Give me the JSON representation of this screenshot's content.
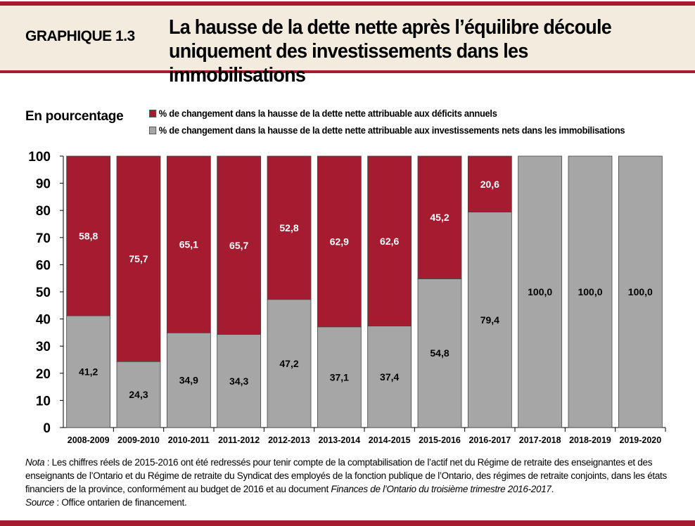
{
  "header": {
    "label": "GRAPHIQUE 1.3",
    "title_line1": "La hausse de la dette nette après l’équilibre découle",
    "title_line2": "uniquement des investissements dans les immobilisations"
  },
  "colors": {
    "deficit": "#a51c30",
    "investment": "#a6a6a6",
    "brand": "#a51c30",
    "header_bg": "#f3ebdd"
  },
  "chart_data": {
    "type": "bar",
    "stacked": true,
    "ylabel": "En pourcentage",
    "ylim": [
      0,
      100
    ],
    "yticks": [
      0,
      10,
      20,
      30,
      40,
      50,
      60,
      70,
      80,
      90,
      100
    ],
    "grid": false,
    "legend_placement": "top",
    "categories": [
      "2008-2009",
      "2009-2010",
      "2010-2011",
      "2011-2012",
      "2012-2013",
      "2013-2014",
      "2014-2015",
      "2015-2016",
      "2016-2017",
      "2017-2018",
      "2018-2019",
      "2019-2020"
    ],
    "series": [
      {
        "name": "% de changement dans la hausse de la dette nette attribuable aux investissements nets dans les immobilisations",
        "values": [
          41.2,
          24.3,
          34.9,
          34.3,
          47.2,
          37.1,
          37.4,
          54.8,
          79.4,
          100.0,
          100.0,
          100.0
        ],
        "labels": [
          "41,2",
          "24,3",
          "34,9",
          "34,3",
          "47,2",
          "37,1",
          "37,4",
          "54,8",
          "79,4",
          "100,0",
          "100,0",
          "100,0"
        ]
      },
      {
        "name": "% de changement dans la hausse de la dette nette attribuable aux déficits annuels",
        "values": [
          58.8,
          75.7,
          65.1,
          65.7,
          52.8,
          62.9,
          62.6,
          45.2,
          20.6,
          0,
          0,
          0
        ],
        "labels": [
          "58,8",
          "75,7",
          "65,1",
          "65,7",
          "52,8",
          "62,9",
          "62,6",
          "45,2",
          "20,6",
          "",
          "",
          ""
        ]
      }
    ]
  },
  "legend": {
    "deficit": "% de changement dans la hausse de la dette nette attribuable aux déficits annuels",
    "investment": "% de changement dans la hausse de la dette nette attribuable aux investissements nets dans les immobilisations"
  },
  "note": {
    "nota_label": "Nota",
    "nota_text": " : Les chiffres réels de 2015-2016 ont été redressés pour tenir compte de la comptabilisation de l’actif net du Régime de retraite des enseignantes et des enseignants de l’Ontario et du Régime de retraite du Syndicat des employés de la fonction publique de l’Ontario, des régimes de retraite conjoints, dans les états financiers de la province, conformément au budget de 2016 et au document ",
    "doc_title": "Finances de l’Ontario du troisième trimestre 2016-2017",
    "end": ".",
    "source_label": "Source",
    "source_text": " : Office ontarien de financement."
  }
}
